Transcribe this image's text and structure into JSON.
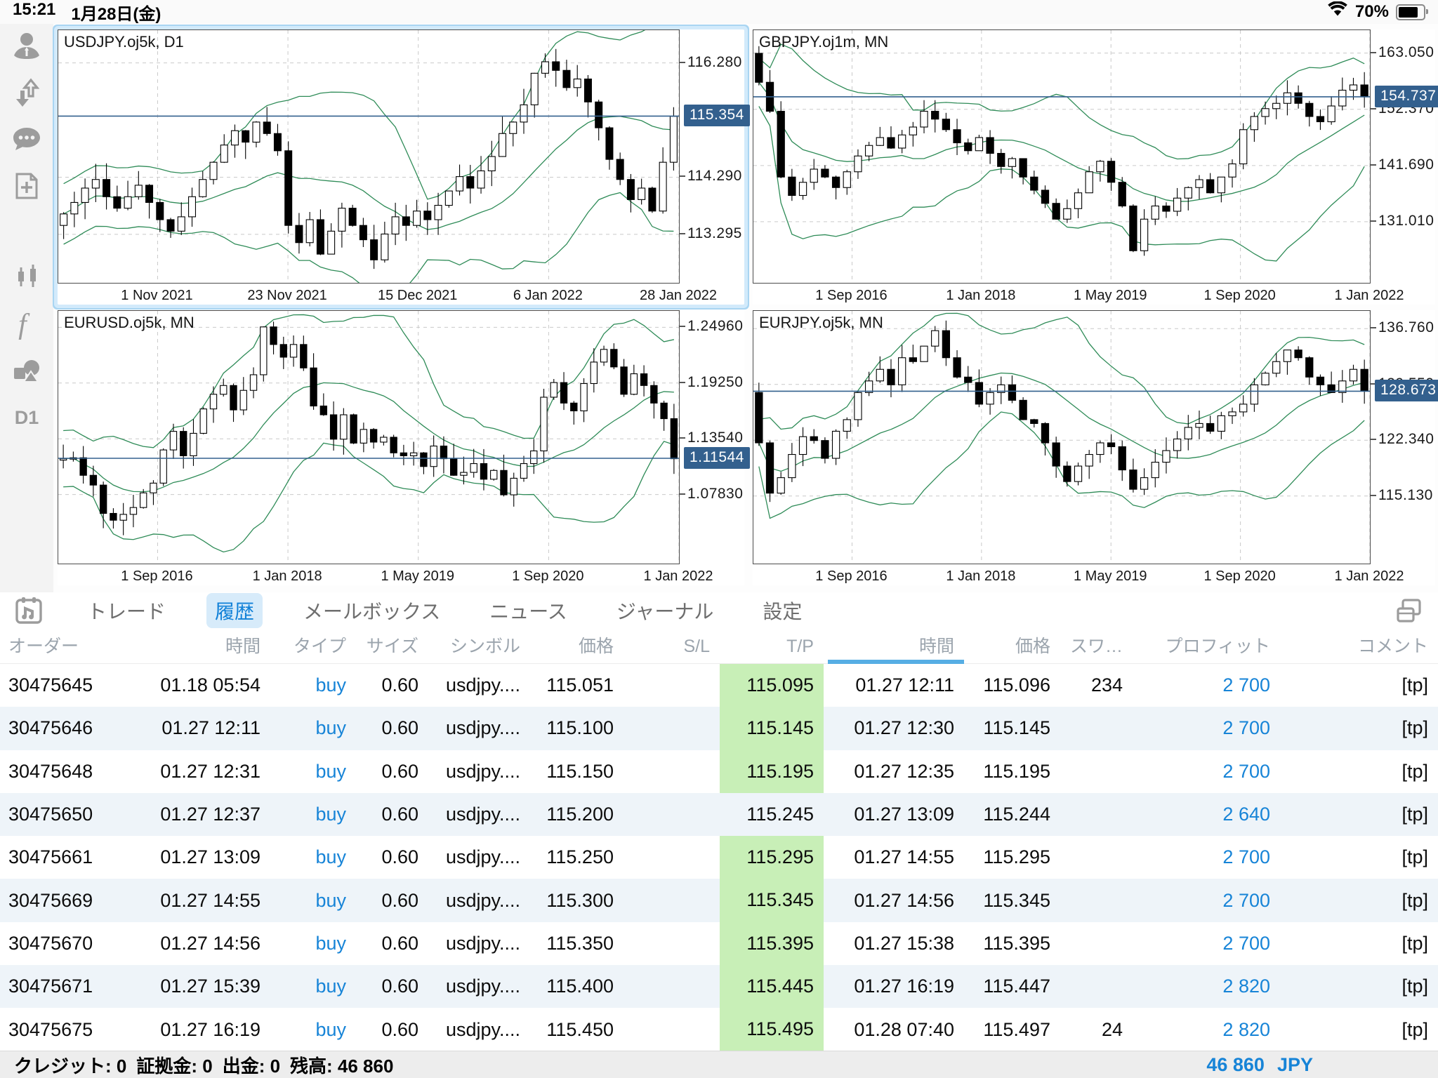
{
  "colors": {
    "accent_blue": "#1784d7",
    "price_badge": "#33608e",
    "band_green": "#2e8b57",
    "tp_green": "#c8efb7",
    "row_alt": "#eef4f9"
  },
  "status_bar": {
    "time": "15:21",
    "date": "1月28日(金)",
    "battery_percent": "70%"
  },
  "sidebar": {
    "icons": [
      "account-icon",
      "deposit-withdraw-icon",
      "chat-icon",
      "new-order-icon",
      "chart-type-icon",
      "indicator-icon",
      "objects-icon"
    ],
    "timeframe": "D1"
  },
  "tab_bar": {
    "tabs": [
      "トレード",
      "履歴",
      "メールボックス",
      "ニュース",
      "ジャーナル",
      "設定"
    ],
    "active_index": 1
  },
  "chart_data": [
    {
      "type": "candlestick",
      "title": "USDJPY.oj5k, D1",
      "selected": true,
      "indicator": "Bollinger Bands",
      "current_price": 115.354,
      "current_label": "115.354",
      "price_ticks": [
        {
          "value": 116.28,
          "label": "116.280"
        },
        {
          "value": 114.29,
          "label": "114.290"
        },
        {
          "value": 113.295,
          "label": "113.295"
        }
      ],
      "y_range": [
        112.45,
        116.85
      ],
      "x_labels": [
        "1 Nov 2021",
        "23 Nov 2021",
        "15 Dec 2021",
        "6 Jan 2022",
        "28 Jan 2022"
      ],
      "closes": [
        113.65,
        113.85,
        114.1,
        114.25,
        113.95,
        113.75,
        113.95,
        114.15,
        113.85,
        113.55,
        113.35,
        113.6,
        113.95,
        114.25,
        114.55,
        114.85,
        115.1,
        114.9,
        115.25,
        115.05,
        114.75,
        113.45,
        113.15,
        113.55,
        112.95,
        113.35,
        113.75,
        113.45,
        113.2,
        112.85,
        113.3,
        113.6,
        113.45,
        113.7,
        113.55,
        113.8,
        114.05,
        114.3,
        114.1,
        114.4,
        114.65,
        115.05,
        115.25,
        115.55,
        116.1,
        116.3,
        116.15,
        115.85,
        116.0,
        115.6,
        115.15,
        114.6,
        114.25,
        113.9,
        114.1,
        113.7,
        114.55,
        115.35
      ]
    },
    {
      "type": "candlestick",
      "title": "GBPJPY.oj1m, MN",
      "selected": false,
      "indicator": "Bollinger Bands",
      "current_price": 154.737,
      "current_label": "154.737",
      "price_ticks": [
        {
          "value": 163.05,
          "label": "163.050"
        },
        {
          "value": 152.37,
          "label": "152.370"
        },
        {
          "value": 141.69,
          "label": "141.690"
        },
        {
          "value": 131.01,
          "label": "131.010"
        }
      ],
      "y_range": [
        119.4,
        167.4
      ],
      "x_labels": [
        "1 Sep 2016",
        "1 Jan 2018",
        "1 May 2019",
        "1 Sep 2020",
        "1 Jan 2022"
      ],
      "closes": [
        157.5,
        152.0,
        139.5,
        136.0,
        138.5,
        141.0,
        139.5,
        137.5,
        140.5,
        143.5,
        145.5,
        147.0,
        145.0,
        147.5,
        149.0,
        152.0,
        150.5,
        148.5,
        146.0,
        144.5,
        147.0,
        144.0,
        141.5,
        143.0,
        139.5,
        137.0,
        134.5,
        131.5,
        133.5,
        136.5,
        140.5,
        142.5,
        138.5,
        134.0,
        125.5,
        131.5,
        134.0,
        133.0,
        135.5,
        137.5,
        139.0,
        136.5,
        139.5,
        142.0,
        148.5,
        151.0,
        152.5,
        153.5,
        155.5,
        153.5,
        151.0,
        150.0,
        153.0,
        156.0,
        157.0,
        154.74
      ]
    },
    {
      "type": "candlestick",
      "title": "EURUSD.oj5k, MN",
      "selected": false,
      "indicator": "Bollinger Bands",
      "current_price": 1.11544,
      "current_label": "1.11544",
      "price_ticks": [
        {
          "value": 1.2496,
          "label": "1.24960"
        },
        {
          "value": 1.1925,
          "label": "1.19250"
        },
        {
          "value": 1.1354,
          "label": "1.13540"
        },
        {
          "value": 1.0783,
          "label": "1.07830"
        }
      ],
      "y_range": [
        1.0076,
        1.2664
      ],
      "x_labels": [
        "1 Sep 2016",
        "1 Jan 2018",
        "1 May 2019",
        "1 Sep 2020",
        "1 Jan 2022"
      ],
      "closes": [
        1.115,
        1.116,
        1.098,
        1.088,
        1.059,
        1.052,
        1.058,
        1.065,
        1.08,
        1.09,
        1.124,
        1.143,
        1.118,
        1.141,
        1.166,
        1.181,
        1.19,
        1.165,
        1.185,
        1.201,
        1.25,
        1.232,
        1.219,
        1.232,
        1.208,
        1.169,
        1.16,
        1.135,
        1.16,
        1.131,
        1.145,
        1.132,
        1.137,
        1.121,
        1.118,
        1.121,
        1.107,
        1.128,
        1.115,
        1.098,
        1.101,
        1.11,
        1.094,
        1.103,
        1.078,
        1.095,
        1.11,
        1.123,
        1.178,
        1.193,
        1.172,
        1.164,
        1.192,
        1.214,
        1.227,
        1.209,
        1.181,
        1.202,
        1.19,
        1.172,
        1.156,
        1.115
      ]
    },
    {
      "type": "candlestick",
      "title": "EURJPY.oj5k, MN",
      "selected": false,
      "indicator": "Bollinger Bands",
      "current_price": 128.673,
      "current_label": "128.673",
      "price_ticks": [
        {
          "value": 136.76,
          "label": "136.760"
        },
        {
          "value": 129.55,
          "label": "129.550"
        },
        {
          "value": 122.34,
          "label": "122.340"
        },
        {
          "value": 115.13,
          "label": "115.130"
        }
      ],
      "y_range": [
        106.4,
        139.05
      ],
      "x_labels": [
        "1 Sep 2016",
        "1 Jan 2018",
        "1 May 2019",
        "1 Sep 2020",
        "1 Jan 2022"
      ],
      "closes": [
        122.0,
        115.5,
        117.5,
        120.5,
        122.8,
        122.3,
        120.0,
        123.5,
        125.0,
        128.5,
        130.0,
        131.5,
        129.5,
        133.0,
        132.5,
        134.5,
        136.5,
        133.0,
        130.5,
        129.8,
        127.0,
        128.5,
        129.5,
        127.5,
        125.0,
        124.5,
        122.0,
        119.0,
        117.0,
        119.0,
        120.5,
        122.0,
        121.5,
        118.5,
        116.0,
        117.5,
        119.5,
        121.0,
        122.5,
        124.0,
        124.5,
        123.5,
        125.5,
        126.0,
        127.0,
        129.5,
        131.0,
        132.5,
        134.0,
        133.0,
        130.5,
        129.5,
        128.5,
        130.0,
        131.5,
        128.7
      ]
    }
  ],
  "history": {
    "columns": [
      "オーダー",
      "時間",
      "タイプ",
      "サイズ",
      "シンボル",
      "価格",
      "S/L",
      "T/P",
      "時間",
      "価格",
      "スワ…",
      "プロフィット",
      "コメント"
    ],
    "sorted_column_index": 8,
    "rows": [
      {
        "order": "30475645",
        "open_time": "01.18 05:54",
        "type": "buy",
        "size": "0.60",
        "symbol": "usdjpy....",
        "open_price": "115.051",
        "sl": "",
        "tp": "115.095",
        "tp_hit": true,
        "close_time": "01.27 12:11",
        "close_price": "115.096",
        "swap": "234",
        "profit": "2 700",
        "comment": "[tp]"
      },
      {
        "order": "30475646",
        "open_time": "01.27 12:11",
        "type": "buy",
        "size": "0.60",
        "symbol": "usdjpy....",
        "open_price": "115.100",
        "sl": "",
        "tp": "115.145",
        "tp_hit": true,
        "close_time": "01.27 12:30",
        "close_price": "115.145",
        "swap": "",
        "profit": "2 700",
        "comment": "[tp]"
      },
      {
        "order": "30475648",
        "open_time": "01.27 12:31",
        "type": "buy",
        "size": "0.60",
        "symbol": "usdjpy....",
        "open_price": "115.150",
        "sl": "",
        "tp": "115.195",
        "tp_hit": true,
        "close_time": "01.27 12:35",
        "close_price": "115.195",
        "swap": "",
        "profit": "2 700",
        "comment": "[tp]"
      },
      {
        "order": "30475650",
        "open_time": "01.27 12:37",
        "type": "buy",
        "size": "0.60",
        "symbol": "usdjpy....",
        "open_price": "115.200",
        "sl": "",
        "tp": "115.245",
        "tp_hit": false,
        "close_time": "01.27 13:09",
        "close_price": "115.244",
        "swap": "",
        "profit": "2 640",
        "comment": "[tp]"
      },
      {
        "order": "30475661",
        "open_time": "01.27 13:09",
        "type": "buy",
        "size": "0.60",
        "symbol": "usdjpy....",
        "open_price": "115.250",
        "sl": "",
        "tp": "115.295",
        "tp_hit": true,
        "close_time": "01.27 14:55",
        "close_price": "115.295",
        "swap": "",
        "profit": "2 700",
        "comment": "[tp]"
      },
      {
        "order": "30475669",
        "open_time": "01.27 14:55",
        "type": "buy",
        "size": "0.60",
        "symbol": "usdjpy....",
        "open_price": "115.300",
        "sl": "",
        "tp": "115.345",
        "tp_hit": true,
        "close_time": "01.27 14:56",
        "close_price": "115.345",
        "swap": "",
        "profit": "2 700",
        "comment": "[tp]"
      },
      {
        "order": "30475670",
        "open_time": "01.27 14:56",
        "type": "buy",
        "size": "0.60",
        "symbol": "usdjpy....",
        "open_price": "115.350",
        "sl": "",
        "tp": "115.395",
        "tp_hit": true,
        "close_time": "01.27 15:38",
        "close_price": "115.395",
        "swap": "",
        "profit": "2 700",
        "comment": "[tp]"
      },
      {
        "order": "30475671",
        "open_time": "01.27 15:39",
        "type": "buy",
        "size": "0.60",
        "symbol": "usdjpy....",
        "open_price": "115.400",
        "sl": "",
        "tp": "115.445",
        "tp_hit": true,
        "close_time": "01.27 16:19",
        "close_price": "115.447",
        "swap": "",
        "profit": "2 820",
        "comment": "[tp]"
      },
      {
        "order": "30475675",
        "open_time": "01.27 16:19",
        "type": "buy",
        "size": "0.60",
        "symbol": "usdjpy....",
        "open_price": "115.450",
        "sl": "",
        "tp": "115.495",
        "tp_hit": true,
        "close_time": "01.28 07:40",
        "close_price": "115.497",
        "swap": "24",
        "profit": "2 820",
        "comment": "[tp]"
      }
    ]
  },
  "account_bar": {
    "items": [
      {
        "label": "クレジット",
        "value": "0"
      },
      {
        "label": "証拠金",
        "value": "0"
      },
      {
        "label": "出金",
        "value": "0"
      },
      {
        "label": "残高",
        "value": "46 860"
      }
    ],
    "total": "46 860",
    "currency": "JPY"
  }
}
